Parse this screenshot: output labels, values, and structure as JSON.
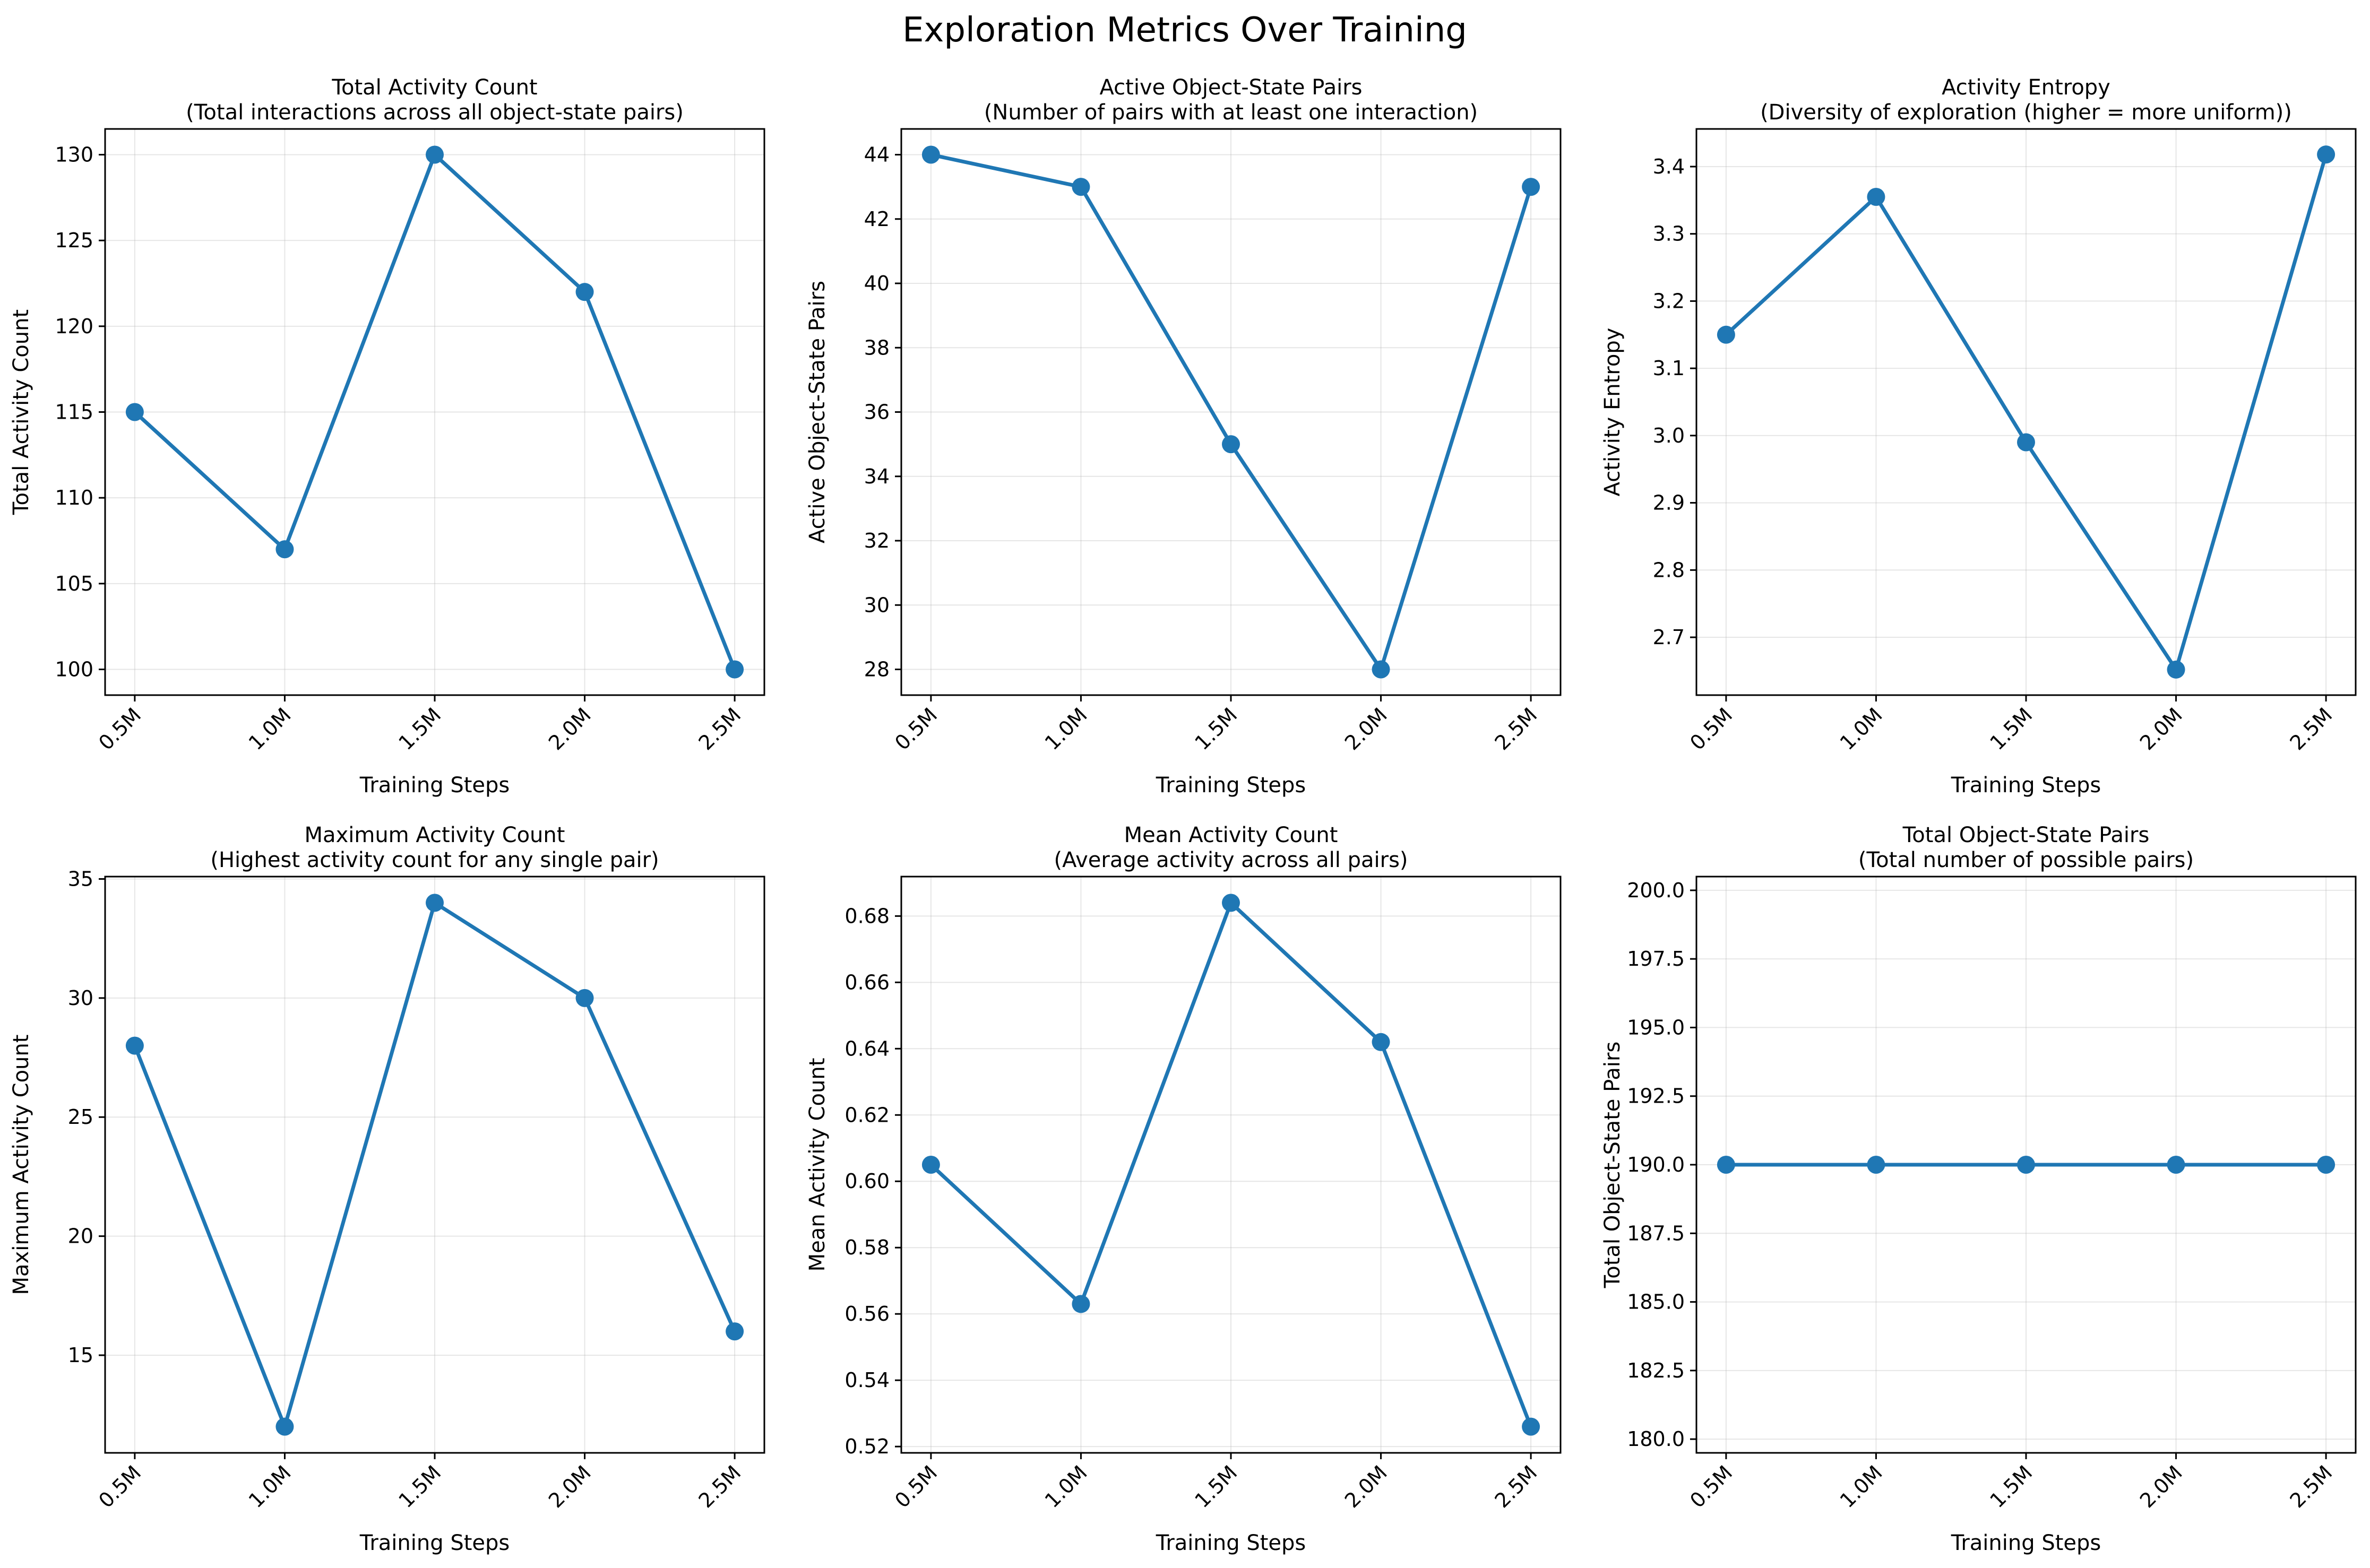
{
  "figure": {
    "title": "Exploration Metrics Over Training",
    "accent_color": "#1f77b4"
  },
  "chart_data": [
    {
      "type": "line",
      "title": "Total Activity Count",
      "subtitle": "(Total interactions across all object-state pairs)",
      "xlabel": "Training Steps",
      "ylabel": "Total Activity Count",
      "categories": [
        "0.5M",
        "1.0M",
        "1.5M",
        "2.0M",
        "2.5M"
      ],
      "values": [
        115,
        107,
        130,
        122,
        100
      ],
      "ylim": [
        98.5,
        131.5
      ],
      "yticks": [
        100,
        105,
        110,
        115,
        120,
        125,
        130
      ],
      "ytick_labels": [
        "100",
        "105",
        "110",
        "115",
        "120",
        "125",
        "130"
      ],
      "grid": true
    },
    {
      "type": "line",
      "title": "Active Object-State Pairs",
      "subtitle": "(Number of pairs with at least one interaction)",
      "xlabel": "Training Steps",
      "ylabel": "Active Object-State Pairs",
      "categories": [
        "0.5M",
        "1.0M",
        "1.5M",
        "2.0M",
        "2.5M"
      ],
      "values": [
        44,
        43,
        35,
        28,
        43
      ],
      "ylim": [
        27.2,
        44.8
      ],
      "yticks": [
        28,
        30,
        32,
        34,
        36,
        38,
        40,
        42,
        44
      ],
      "ytick_labels": [
        "28",
        "30",
        "32",
        "34",
        "36",
        "38",
        "40",
        "42",
        "44"
      ],
      "grid": true
    },
    {
      "type": "line",
      "title": "Activity Entropy",
      "subtitle": "(Diversity of exploration (higher = more uniform))",
      "xlabel": "Training Steps",
      "ylabel": "Activity Entropy",
      "categories": [
        "0.5M",
        "1.0M",
        "1.5M",
        "2.0M",
        "2.5M"
      ],
      "values": [
        3.15,
        3.355,
        2.99,
        2.652,
        3.418
      ],
      "ylim": [
        2.614,
        3.456
      ],
      "yticks": [
        2.7,
        2.8,
        2.9,
        3.0,
        3.1,
        3.2,
        3.3,
        3.4
      ],
      "ytick_labels": [
        "2.7",
        "2.8",
        "2.9",
        "3.0",
        "3.1",
        "3.2",
        "3.3",
        "3.4"
      ],
      "grid": true
    },
    {
      "type": "line",
      "title": "Maximum Activity Count",
      "subtitle": "(Highest activity count for any single pair)",
      "xlabel": "Training Steps",
      "ylabel": "Maximum Activity Count",
      "categories": [
        "0.5M",
        "1.0M",
        "1.5M",
        "2.0M",
        "2.5M"
      ],
      "values": [
        28,
        12,
        34,
        30,
        16
      ],
      "ylim": [
        10.9,
        35.1
      ],
      "yticks": [
        15,
        20,
        25,
        30,
        35
      ],
      "ytick_labels": [
        "15",
        "20",
        "25",
        "30",
        "35"
      ],
      "grid": true
    },
    {
      "type": "line",
      "title": "Mean Activity Count",
      "subtitle": "(Average activity across all pairs)",
      "xlabel": "Training Steps",
      "ylabel": "Mean Activity Count",
      "categories": [
        "0.5M",
        "1.0M",
        "1.5M",
        "2.0M",
        "2.5M"
      ],
      "values": [
        0.605,
        0.563,
        0.684,
        0.642,
        0.526
      ],
      "ylim": [
        0.5181,
        0.6919
      ],
      "yticks": [
        0.52,
        0.54,
        0.56,
        0.58,
        0.6,
        0.62,
        0.64,
        0.66,
        0.68
      ],
      "ytick_labels": [
        "0.52",
        "0.54",
        "0.56",
        "0.58",
        "0.60",
        "0.62",
        "0.64",
        "0.66",
        "0.68"
      ],
      "grid": true
    },
    {
      "type": "line",
      "title": "Total Object-State Pairs",
      "subtitle": "(Total number of possible pairs)",
      "xlabel": "Training Steps",
      "ylabel": "Total Object-State Pairs",
      "categories": [
        "0.5M",
        "1.0M",
        "1.5M",
        "2.0M",
        "2.5M"
      ],
      "values": [
        190,
        190,
        190,
        190,
        190
      ],
      "ylim": [
        179.5,
        200.5
      ],
      "yticks": [
        180.0,
        182.5,
        185.0,
        187.5,
        190.0,
        192.5,
        195.0,
        197.5,
        200.0
      ],
      "ytick_labels": [
        "180.0",
        "182.5",
        "185.0",
        "187.5",
        "190.0",
        "192.5",
        "195.0",
        "197.5",
        "200.0"
      ],
      "grid": true
    }
  ]
}
